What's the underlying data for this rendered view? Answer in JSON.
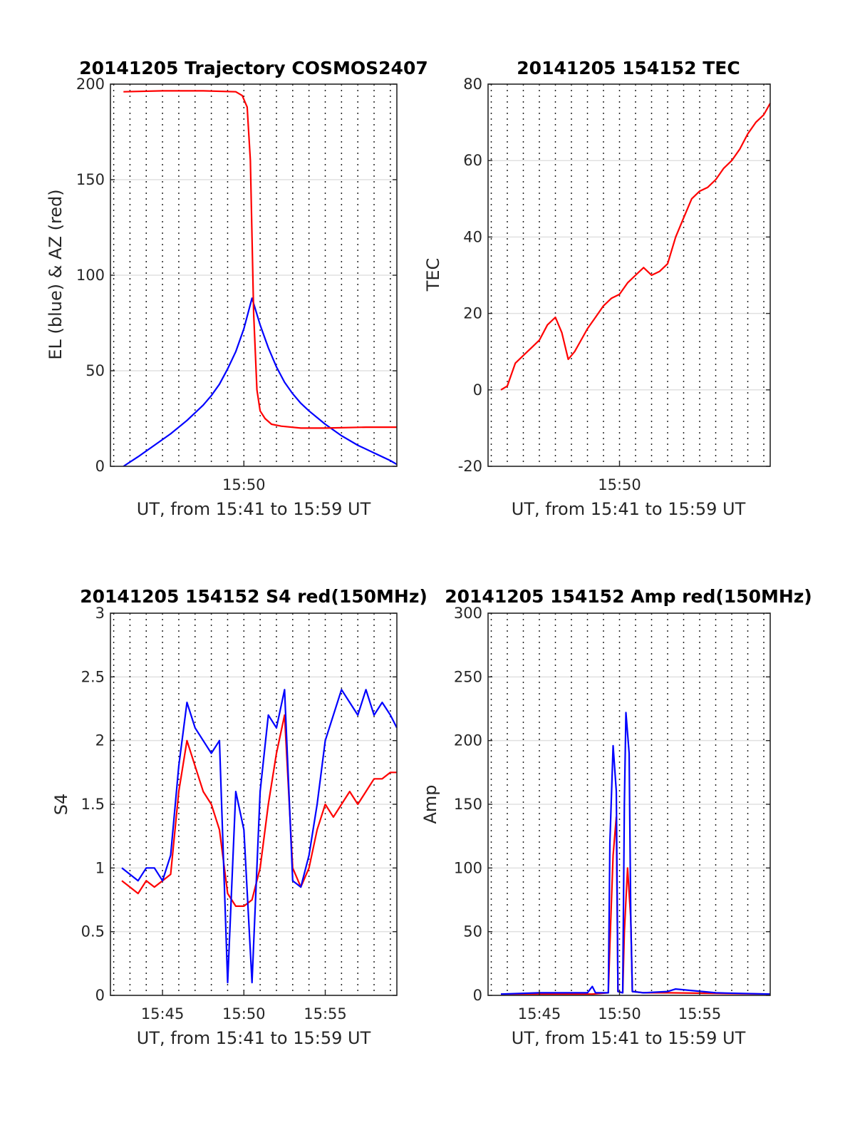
{
  "chart_data": [
    {
      "id": "traj",
      "type": "line",
      "title": "20141205 Trajectory COSMOS2407",
      "xlabel": "UT, from 15:41 to 15:59 UT",
      "ylabel": "EL (blue) & AZ (red)",
      "xlim": [
        41.8,
        59.4
      ],
      "ylim": [
        0,
        200
      ],
      "yticks": [
        0,
        50,
        100,
        150,
        200
      ],
      "xticks": [
        {
          "v": 50,
          "label": "15:50"
        }
      ],
      "grid": "y solid, x dotted every 1 minute",
      "series": [
        {
          "name": "EL",
          "color": "#0000ff",
          "x": [
            42.6,
            43.5,
            44.5,
            45.5,
            46.5,
            47.5,
            48.0,
            48.5,
            49.0,
            49.5,
            50.0,
            50.5,
            51.0,
            51.5,
            52.0,
            52.5,
            53.0,
            53.5,
            54.0,
            55.0,
            56.0,
            57.0,
            58.0,
            59.0,
            59.4
          ],
          "y": [
            0,
            5,
            11,
            17,
            24,
            32,
            37,
            43,
            51,
            60,
            72,
            88,
            74,
            62,
            52,
            44,
            38,
            33,
            29,
            22,
            16,
            11,
            7,
            3,
            1
          ]
        },
        {
          "name": "AZ",
          "color": "#ff0000",
          "x": [
            42.6,
            45.0,
            47.5,
            49.5,
            49.9,
            50.2,
            50.4,
            50.5,
            50.6,
            50.8,
            51.0,
            51.3,
            51.7,
            52.3,
            53.5,
            55.0,
            57.5,
            59.4
          ],
          "y": [
            196,
            196.5,
            196.5,
            196,
            194,
            188,
            160,
            120,
            80,
            40,
            29,
            25,
            22,
            21,
            20,
            20,
            20.5,
            20.5
          ]
        }
      ]
    },
    {
      "id": "tec",
      "type": "line",
      "title": "20141205 154152 TEC",
      "xlabel": "UT, from 15:41 to 15:59 UT",
      "ylabel": "TEC",
      "xlim": [
        41.8,
        59.4
      ],
      "ylim": [
        -20,
        80
      ],
      "yticks": [
        -20,
        0,
        20,
        40,
        60,
        80
      ],
      "xticks": [
        {
          "v": 50,
          "label": "15:50"
        }
      ],
      "grid": "y solid, x dotted every 1 minute",
      "series": [
        {
          "name": "TEC",
          "color": "#ff0000",
          "x": [
            42.6,
            43.0,
            43.5,
            44.0,
            44.5,
            45.0,
            45.5,
            46.0,
            46.4,
            46.8,
            47.2,
            47.6,
            48.0,
            48.5,
            49.0,
            49.5,
            50.0,
            50.5,
            51.0,
            51.5,
            52.0,
            52.5,
            53.0,
            53.5,
            54.0,
            54.5,
            55.0,
            55.5,
            56.0,
            56.5,
            57.0,
            57.5,
            58.0,
            58.5,
            59.0,
            59.4
          ],
          "y": [
            0,
            1,
            7,
            9,
            11,
            13,
            17,
            19,
            15,
            8,
            10,
            13,
            16,
            19,
            22,
            24,
            25,
            28,
            30,
            32,
            30,
            31,
            33,
            40,
            45,
            50,
            52,
            53,
            55,
            58,
            60,
            63,
            67,
            70,
            72,
            75
          ]
        }
      ]
    },
    {
      "id": "s4",
      "type": "line",
      "title": "20141205 154152 S4 red(150MHz)",
      "xlabel": "UT, from 15:41 to 15:59 UT",
      "ylabel": "S4",
      "xlim": [
        41.8,
        59.4
      ],
      "ylim": [
        0,
        3
      ],
      "yticks": [
        0,
        0.5,
        1,
        1.5,
        2,
        2.5,
        3
      ],
      "xticks": [
        {
          "v": 45,
          "label": "15:45"
        },
        {
          "v": 50,
          "label": "15:50"
        },
        {
          "v": 55,
          "label": "15:55"
        }
      ],
      "grid": "y solid, x dotted every 1 minute",
      "series": [
        {
          "name": "red",
          "color": "#ff0000",
          "x": [
            42.5,
            43.0,
            43.5,
            44.0,
            44.5,
            45.0,
            45.5,
            46.0,
            46.5,
            47.0,
            47.5,
            48.0,
            48.5,
            49.0,
            49.5,
            50.0,
            50.5,
            51.0,
            51.5,
            52.0,
            52.5,
            53.0,
            53.5,
            54.0,
            54.5,
            55.0,
            55.5,
            56.0,
            56.5,
            57.0,
            57.5,
            58.0,
            58.5,
            59.0,
            59.4
          ],
          "y": [
            0.9,
            0.85,
            0.8,
            0.9,
            0.85,
            0.9,
            0.95,
            1.6,
            2.0,
            1.8,
            1.6,
            1.5,
            1.3,
            0.8,
            0.7,
            0.7,
            0.75,
            1.0,
            1.5,
            1.9,
            2.2,
            1.0,
            0.85,
            1.0,
            1.3,
            1.5,
            1.4,
            1.5,
            1.6,
            1.5,
            1.6,
            1.7,
            1.7,
            1.75,
            1.75
          ]
        },
        {
          "name": "blue",
          "color": "#0000ff",
          "x": [
            42.5,
            43.0,
            43.5,
            44.0,
            44.5,
            45.0,
            45.5,
            46.0,
            46.5,
            47.0,
            47.5,
            48.0,
            48.5,
            49.0,
            49.5,
            50.0,
            50.5,
            51.0,
            51.5,
            52.0,
            52.5,
            53.0,
            53.5,
            54.0,
            54.5,
            55.0,
            55.5,
            56.0,
            56.5,
            57.0,
            57.5,
            58.0,
            58.5,
            59.0,
            59.4
          ],
          "y": [
            1.0,
            0.95,
            0.9,
            1.0,
            1.0,
            0.9,
            1.1,
            1.8,
            2.3,
            2.1,
            2.0,
            1.9,
            2.0,
            0.1,
            1.6,
            1.3,
            0.1,
            1.6,
            2.2,
            2.1,
            2.4,
            0.9,
            0.85,
            1.1,
            1.5,
            2.0,
            2.2,
            2.4,
            2.3,
            2.2,
            2.4,
            2.2,
            2.3,
            2.2,
            2.1
          ]
        }
      ]
    },
    {
      "id": "amp",
      "type": "line",
      "title": "20141205 154152 Amp red(150MHz)",
      "xlabel": "UT, from 15:41 to 15:59 UT",
      "ylabel": "Amp",
      "xlim": [
        41.8,
        59.4
      ],
      "ylim": [
        0,
        300
      ],
      "yticks": [
        0,
        50,
        100,
        150,
        200,
        250,
        300
      ],
      "xticks": [
        {
          "v": 45,
          "label": "15:45"
        },
        {
          "v": 50,
          "label": "15:50"
        },
        {
          "v": 55,
          "label": "15:55"
        }
      ],
      "grid": "y solid, x dotted every 1 minute",
      "series": [
        {
          "name": "red",
          "color": "#ff0000",
          "x": [
            42.6,
            48.3,
            49.3,
            49.4,
            49.6,
            49.8,
            49.9,
            50.2,
            50.3,
            50.5,
            50.7,
            50.8,
            51.5,
            53.0,
            59.4
          ],
          "y": [
            1,
            1,
            2,
            40,
            110,
            140,
            3,
            2,
            50,
            100,
            60,
            3,
            2,
            2,
            1
          ]
        },
        {
          "name": "blue",
          "color": "#0000ff",
          "x": [
            42.6,
            45.0,
            48.0,
            48.3,
            48.5,
            49.3,
            49.4,
            49.6,
            49.8,
            49.9,
            50.2,
            50.3,
            50.4,
            50.6,
            50.7,
            50.8,
            51.5,
            53.0,
            53.5,
            56.0,
            59.4
          ],
          "y": [
            1,
            2,
            2,
            7,
            2,
            2,
            120,
            196,
            160,
            3,
            2,
            150,
            222,
            190,
            60,
            3,
            2,
            3,
            5,
            2,
            1
          ]
        }
      ]
    }
  ]
}
